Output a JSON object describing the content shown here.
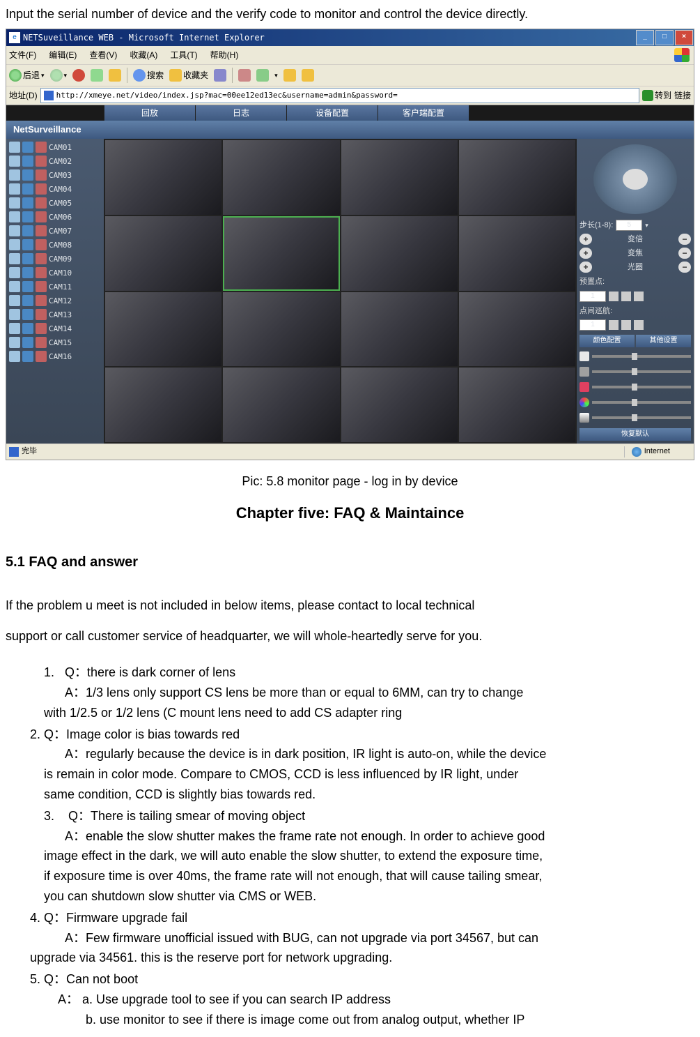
{
  "intro_text": "Input the serial number of device and the verify code to monitor and control the device directly.",
  "caption": "Pic: 5.8 monitor page - log in by device",
  "chapter_title": "Chapter five: FAQ & Maintaince",
  "section_title": "5.1 FAQ and answer",
  "para1": "If the problem u meet is not included in below items, please contact to local technical",
  "para2": "support or call customer service of headquarter, we will whole-heartedly serve for you.",
  "faq": {
    "q1_num": "1.",
    "q1": "Q：there is dark corner of lens",
    "a1": "A：1/3 lens only support CS lens be more than or equal to 6MM, can try to change",
    "a1b": "with 1/2.5 or 1/2 lens (C mount lens need to add CS adapter ring",
    "q2": "2. Q：Image color is bias towards red",
    "a2": "A：regularly because the device is in dark position, IR light is auto-on, while the device",
    "a2b": "is remain in color mode. Compare to CMOS, CCD is less influenced by IR light, under",
    "a2c": "same condition, CCD is slightly bias towards red.",
    "q3_num": "3.",
    "q3": "Q：There is tailing smear of moving object",
    "a3": "A：enable the slow shutter makes the frame rate not enough. In order to achieve good",
    "a3b": "image effect in the dark, we will auto enable the slow shutter, to extend the exposure time,",
    "a3c": "if exposure time is over 40ms, the frame rate will not enough, that will cause tailing smear,",
    "a3d": "you can shutdown slow shutter via CMS or WEB.",
    "q4": "4. Q：Firmware upgrade fail",
    "a4": "A：Few firmware unofficial issued with BUG, can not upgrade via port 34567, but can",
    "a4b": "upgrade via 34561. this is the reserve port for network upgrading.",
    "q5": "5. Q：Can not boot",
    "a5": "A： a. Use upgrade tool to see if you can search IP address",
    "a5b": "b. use monitor to see if there is image come out from analog output, whether IP"
  },
  "ie": {
    "title": "NETSuveillance WEB - Microsoft Internet Explorer",
    "menu": {
      "file": "文件(F)",
      "edit": "编辑(E)",
      "view": "查看(V)",
      "fav": "收藏(A)",
      "tools": "工具(T)",
      "help": "帮助(H)"
    },
    "tb": {
      "back": "后退",
      "search": "搜索",
      "favorites": "收藏夹"
    },
    "addr_label": "地址(D)",
    "url": "http://xmeye.net/video/index.jsp?mac=00ee12ed13ec&username=admin&password=",
    "go": "转到",
    "links": "链接",
    "status_done": "完毕",
    "status_zone": "Internet"
  },
  "app": {
    "logo": "NetSurveillance",
    "tabs": {
      "playback": "回放",
      "log": "日志",
      "devcfg": "设备配置",
      "clientcfg": "客户端配置"
    },
    "cams": [
      "CAM01",
      "CAM02",
      "CAM03",
      "CAM04",
      "CAM05",
      "CAM06",
      "CAM07",
      "CAM08",
      "CAM09",
      "CAM10",
      "CAM11",
      "CAM12",
      "CAM13",
      "CAM14",
      "CAM15",
      "CAM16"
    ],
    "ptz": {
      "step_label": "步长(1-8):",
      "step_val": "5",
      "zoom": "变倍",
      "focus": "变焦",
      "iris": "光圈",
      "preset": "预置点:",
      "preset_val": "1",
      "tour": "点间巡航:",
      "tour_val": "1",
      "color_tab": "颜色配置",
      "other_tab": "其他设置",
      "restore": "恢复默认"
    }
  },
  "colors": {
    "sl1": "#e8e8e8",
    "sl2": "#f0c040",
    "sl3": "#4080c0",
    "sl4": "#e04060",
    "sl5": "#60c060"
  }
}
